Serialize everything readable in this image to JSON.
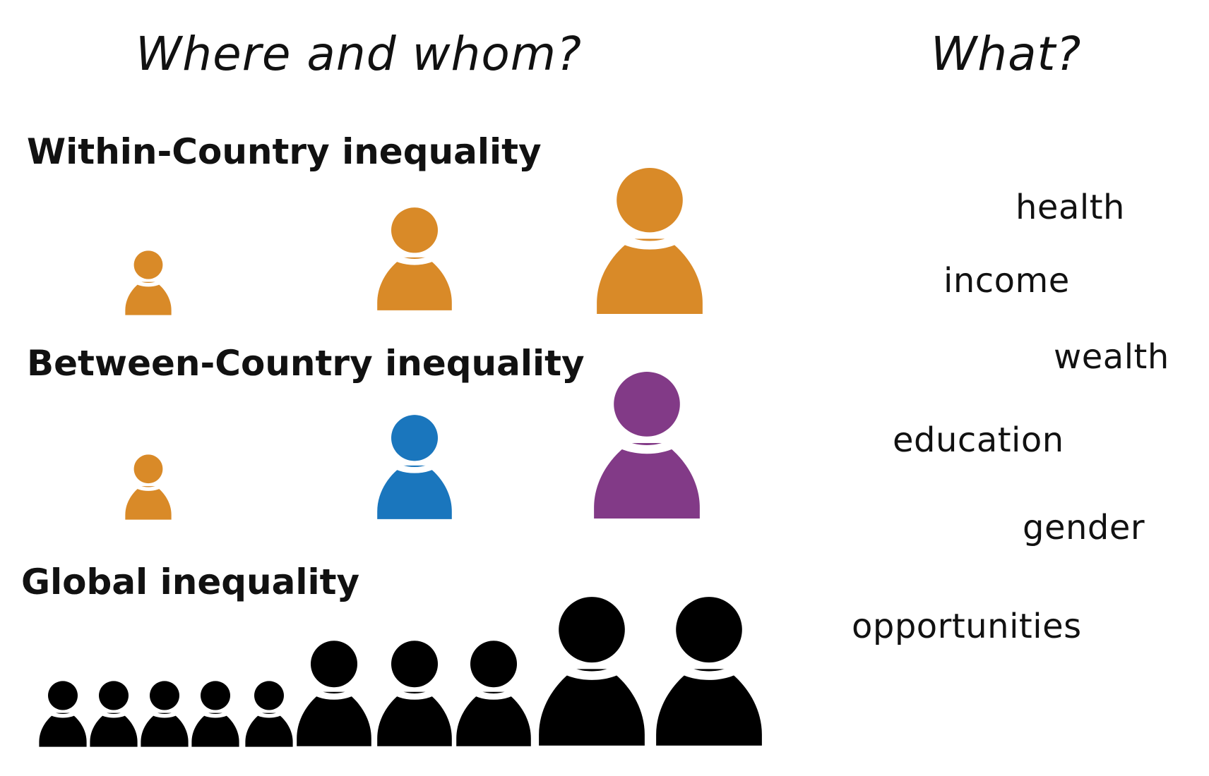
{
  "headings": {
    "where_whom": "Where and whom?",
    "what": "What?"
  },
  "sections": {
    "within": "Within-Country inequality",
    "between": "Between-Country inequality",
    "global": "Global inequality"
  },
  "what_items": [
    "health",
    "income",
    "wealth",
    "education",
    "gender",
    "opportunities"
  ],
  "colors": {
    "orange": "#d98a28",
    "blue": "#1a76bd",
    "purple": "#823a87",
    "black": "#000000",
    "text": "#111111"
  }
}
